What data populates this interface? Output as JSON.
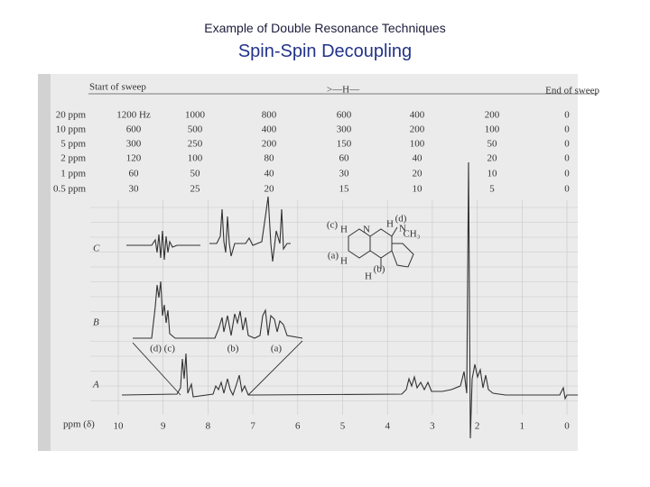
{
  "header": {
    "title": "Example of Double Resonance Techniques",
    "subtitle": "Spin-Spin Decoupling"
  },
  "spectrum": {
    "sweep_start": "Start of sweep",
    "sweep_direction": ">—H—",
    "sweep_end": "End of sweep",
    "scale_table": {
      "rows": [
        [
          "20 ppm",
          "1200 Hz",
          "1000",
          "800",
          "600",
          "400",
          "200",
          "0"
        ],
        [
          "10 ppm",
          "600",
          "500",
          "400",
          "300",
          "200",
          "100",
          "0"
        ],
        [
          "5 ppm",
          "300",
          "250",
          "200",
          "150",
          "100",
          "50",
          "0"
        ],
        [
          "2 ppm",
          "120",
          "100",
          "80",
          "60",
          "40",
          "20",
          "0"
        ],
        [
          "1 ppm",
          "60",
          "50",
          "40",
          "30",
          "20",
          "10",
          "0"
        ],
        [
          "0.5 ppm",
          "30",
          "25",
          "20",
          "15",
          "10",
          "5",
          "0"
        ]
      ]
    },
    "axis": {
      "label": "ppm (δ)",
      "ticks": [
        "10",
        "9",
        "8",
        "7",
        "6",
        "5",
        "4",
        "3",
        "2",
        "1",
        "0"
      ]
    },
    "traces": [
      "C",
      "B",
      "A"
    ],
    "peak_labels": [
      "(d) (c)",
      "(b)",
      "(a)"
    ],
    "structure": {
      "labels": [
        "(c)",
        "H",
        "N",
        "H",
        "(d)",
        "CH₃",
        "N",
        "(a)",
        "H",
        "H",
        "(b)"
      ]
    }
  }
}
